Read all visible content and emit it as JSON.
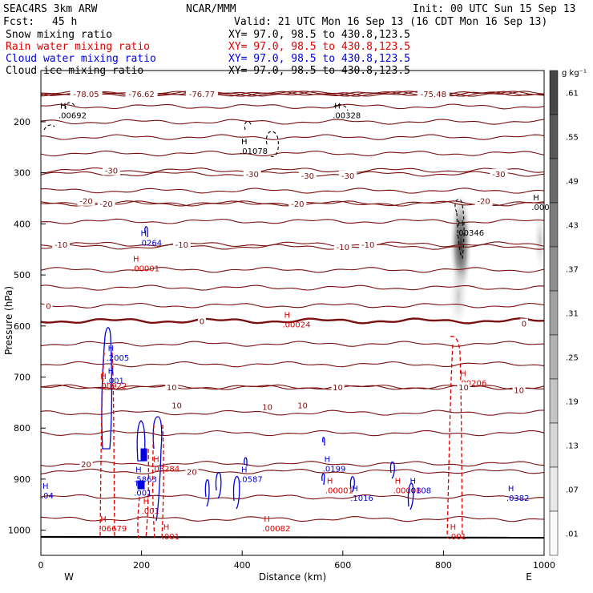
{
  "header": {
    "model": "SEAC4RS  3km ARW",
    "org": "NCAR/MMM",
    "init": "Init: 00 UTC Sun 15 Sep 13",
    "fcst_label": "Fcst:",
    "fcst_value": "45 h",
    "valid": "Valid: 21 UTC Mon 16 Sep 13 (16 CDT Mon 16 Sep 13)"
  },
  "fields": [
    {
      "name": "Snow mixing ratio",
      "xy": "XY=  97.0, 98.5 to 430.8,123.5",
      "color": "#000000"
    },
    {
      "name": "Rain water mixing ratio",
      "xy": "XY=  97.0, 98.5 to 430.8,123.5",
      "color": "#e00000"
    },
    {
      "name": "Cloud water mixing ratio",
      "xy": "XY=  97.0, 98.5 to 430.8,123.5",
      "color": "#0000e0"
    },
    {
      "name": "Cloud ice mixing ratio",
      "xy": "XY=  97.0, 98.5 to 430.8,123.5",
      "color": "#000000"
    }
  ],
  "colors": {
    "temperature": "#7a1010",
    "rain": "#e00000",
    "cloud_water": "#0000e0",
    "snow": "#000000"
  },
  "chart_data": {
    "type": "cross-section",
    "xlabel": "Distance (km)",
    "ylabel": "Pressure (hPa)",
    "xlim": [
      0,
      1000
    ],
    "ylim": [
      1050,
      100
    ],
    "x_ticks": [
      "0",
      "200",
      "400",
      "600",
      "800",
      "1000"
    ],
    "y_ticks": [
      "200",
      "300",
      "400",
      "500",
      "600",
      "700",
      "800",
      "900",
      "1000"
    ],
    "y_tick_values": [
      200,
      300,
      400,
      500,
      600,
      700,
      800,
      900,
      1000
    ],
    "x_tick_values": [
      0,
      200,
      400,
      600,
      800,
      1000
    ],
    "endpoint_left": "W",
    "endpoint_right": "E",
    "colorbar": {
      "unit": "g kg⁻¹",
      "labels": [
        ".61",
        ".55",
        ".49",
        ".43",
        ".37",
        ".31",
        ".25",
        ".19",
        ".13",
        ".07",
        ".01"
      ]
    },
    "temperature_contours": [
      {
        "p": 145,
        "label": "-78.05",
        "lx": 90
      },
      {
        "p": 145,
        "label": "-76.62",
        "lx": 200
      },
      {
        "p": 145,
        "label": "-76.77",
        "lx": 320
      },
      {
        "p": 145,
        "label": "-75.48",
        "lx": 780
      },
      {
        "p": 170,
        "label": ""
      },
      {
        "p": 200,
        "label": ""
      },
      {
        "p": 230,
        "label": ""
      },
      {
        "p": 262,
        "label": ""
      },
      {
        "p": 295,
        "label": "-30",
        "lx": 140
      },
      {
        "p": 302,
        "label": "-30",
        "lx": 420
      },
      {
        "p": 335,
        "label": ""
      },
      {
        "p": 360,
        "label": "-20",
        "lx": 130
      },
      {
        "p": 360,
        "label": "-20",
        "lx": 510
      },
      {
        "p": 395,
        "label": ""
      },
      {
        "p": 440,
        "label": "-10",
        "lx": 40
      },
      {
        "p": 445,
        "label": "-10",
        "lx": 600
      },
      {
        "p": 490,
        "label": ""
      },
      {
        "p": 525,
        "label": ""
      },
      {
        "p": 560,
        "label": "0",
        "lx": 15
      },
      {
        "p": 590,
        "label": "0",
        "lx": 320
      },
      {
        "p": 635,
        "label": ""
      },
      {
        "p": 675,
        "label": ""
      },
      {
        "p": 720,
        "label": "10",
        "lx": 260
      },
      {
        "p": 720,
        "label": "10",
        "lx": 840
      },
      {
        "p": 770,
        "label": ""
      },
      {
        "p": 810,
        "label": ""
      },
      {
        "p": 870,
        "label": "20",
        "lx": 90
      },
      {
        "p": 885,
        "label": "20",
        "lx": 300
      },
      {
        "p": 935,
        "label": ""
      },
      {
        "p": 978,
        "label": ""
      }
    ],
    "extra_temp_labels": [
      {
        "x": 910,
        "p": 302,
        "text": "-30"
      },
      {
        "x": 880,
        "p": 355,
        "text": "-20"
      },
      {
        "x": 90,
        "p": 355,
        "text": "-20"
      },
      {
        "x": 280,
        "p": 440,
        "text": "-10"
      },
      {
        "x": 650,
        "p": 440,
        "text": "-10"
      },
      {
        "x": 960,
        "p": 595,
        "text": "0"
      },
      {
        "x": 270,
        "p": 755,
        "text": "10"
      },
      {
        "x": 950,
        "p": 725,
        "text": "10"
      },
      {
        "x": 520,
        "p": 755,
        "text": "10"
      },
      {
        "x": 450,
        "p": 758,
        "text": "10"
      },
      {
        "x": 590,
        "p": 720,
        "text": "10"
      },
      {
        "x": 610,
        "p": 305,
        "text": "-30"
      },
      {
        "x": 530,
        "p": 305,
        "text": "-30"
      }
    ],
    "highs": [
      {
        "x": 35,
        "p": 180,
        "label": ".00692",
        "color": "#000000"
      },
      {
        "x": 395,
        "p": 250,
        "label": ".01078",
        "color": "#000000"
      },
      {
        "x": 580,
        "p": 180,
        "label": ".00328",
        "color": "#000000"
      },
      {
        "x": 825,
        "p": 410,
        "label": ".00346",
        "color": "#000000"
      },
      {
        "x": 975,
        "p": 360,
        "label": ".000",
        "color": "#000000"
      },
      {
        "x": 195,
        "p": 430,
        "label": ".0264",
        "color": "#0000e0"
      },
      {
        "x": 180,
        "p": 480,
        "label": ".00001",
        "color": "#e00000"
      },
      {
        "x": 480,
        "p": 590,
        "label": ".00024",
        "color": "#e00000"
      },
      {
        "x": 130,
        "p": 655,
        "label": ".2005",
        "color": "#0000e0"
      },
      {
        "x": 130,
        "p": 700,
        "label": ".001",
        "color": "#0000e0"
      },
      {
        "x": 115,
        "p": 710,
        "label": ".00922",
        "color": "#e00000"
      },
      {
        "x": 830,
        "p": 705,
        "label": ".00206",
        "color": "#e00000"
      },
      {
        "x": 220,
        "p": 873,
        "label": ".03284",
        "color": "#e00000"
      },
      {
        "x": 185,
        "p": 893,
        "label": ".5863",
        "color": "#0000e0"
      },
      {
        "x": 185,
        "p": 920,
        "label": ".001",
        "color": "#0000e0"
      },
      {
        "x": 395,
        "p": 893,
        "label": ".0587",
        "color": "#0000e0"
      },
      {
        "x": 560,
        "p": 873,
        "label": ".0199",
        "color": "#0000e0"
      },
      {
        "x": 565,
        "p": 915,
        "label": ".00001",
        "color": "#e00000"
      },
      {
        "x": 615,
        "p": 930,
        "label": ".1016",
        "color": "#0000e0"
      },
      {
        "x": 700,
        "p": 915,
        "label": ".00008",
        "color": "#e00000"
      },
      {
        "x": 730,
        "p": 915,
        "label": ".0108",
        "color": "#0000e0"
      },
      {
        "x": 925,
        "p": 930,
        "label": ".0382",
        "color": "#0000e0"
      },
      {
        "x": 115,
        "p": 990,
        "label": ".06679",
        "color": "#e00000"
      },
      {
        "x": 440,
        "p": 990,
        "label": ".00082",
        "color": "#e00000"
      },
      {
        "x": 200,
        "p": 955,
        "label": ".001",
        "color": "#e00000"
      },
      {
        "x": 240,
        "p": 1005,
        "label": ".001",
        "color": "#e00000"
      },
      {
        "x": 810,
        "p": 1005,
        "label": ".001",
        "color": "#e00000"
      },
      {
        "x": 0,
        "p": 925,
        "label": ".04",
        "color": "#0000e0"
      }
    ]
  }
}
